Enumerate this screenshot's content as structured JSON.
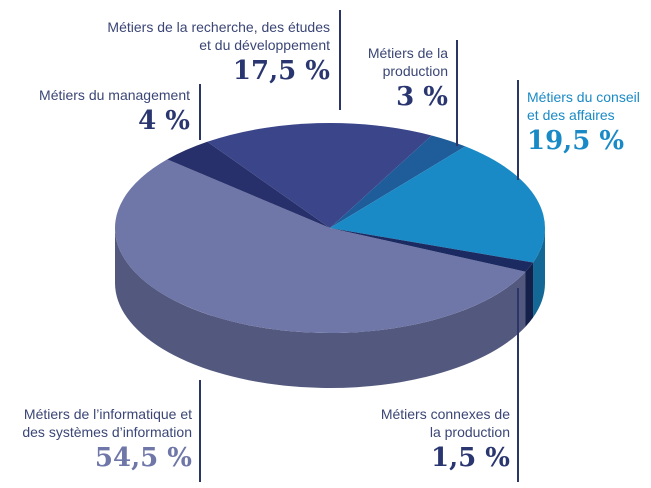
{
  "chart_data": {
    "type": "pie3d",
    "categories": [
      "Métiers de l’informatique et des systèmes d’information",
      "Métiers du management",
      "Métiers de la recherche, des études et du développement",
      "Métiers de la production",
      "Métiers du conseil et des affaires",
      "Métiers connexes de la production"
    ],
    "values": [
      54.5,
      4,
      17.5,
      3,
      19.5,
      1.5
    ],
    "value_labels": [
      "54,5 %",
      "4 %",
      "17,5 %",
      "3 %",
      "19,5 %",
      "1,5 %"
    ],
    "colors": [
      "#6f76a8",
      "#27306a",
      "#3a458a",
      "#1f5c9a",
      "#1a8ac6",
      "#1c2a62"
    ]
  }
}
